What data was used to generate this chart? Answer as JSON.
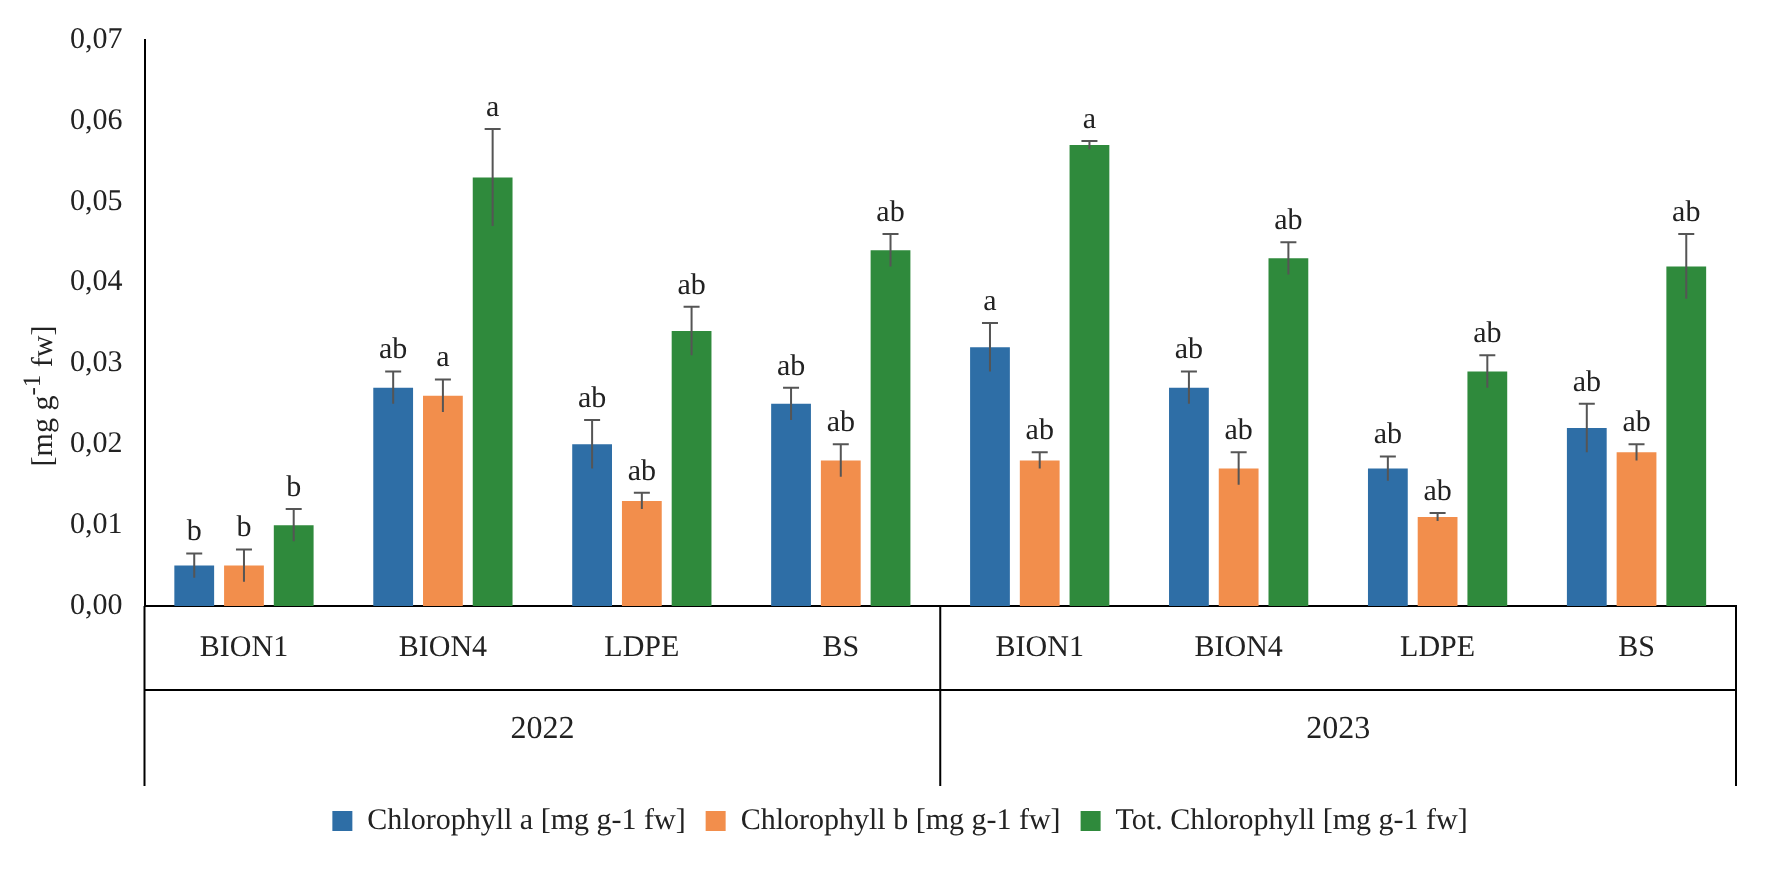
{
  "chart_data": {
    "type": "bar",
    "ylabel": "[mg g$^{-1}$ fw]",
    "categories": [
      "BION1",
      "BION4",
      "LDPE",
      "BS",
      "BION1",
      "BION4",
      "LDPE",
      "BS"
    ],
    "series": [
      {
        "name": "Chlorophyll a [mg g-1 fw]",
        "color": "#2e6ea6",
        "values": [
          0.005,
          0.027,
          0.02,
          0.025,
          0.032,
          0.027,
          0.017,
          0.022
        ],
        "errors": [
          0.0015,
          0.002,
          0.003,
          0.002,
          0.003,
          0.002,
          0.0015,
          0.003
        ],
        "value_labels": [
          "b",
          "ab",
          "ab",
          "ab",
          "a",
          "ab",
          "ab",
          "ab"
        ]
      },
      {
        "name": "Chlorophyll b [mg g-1 fw]",
        "color": "#f28e4c",
        "values": [
          0.005,
          0.026,
          0.013,
          0.018,
          0.018,
          0.017,
          0.011,
          0.019
        ],
        "errors": [
          0.002,
          0.002,
          0.001,
          0.002,
          0.001,
          0.002,
          0.0005,
          0.001
        ],
        "value_labels": [
          "b",
          "a",
          "ab",
          "ab",
          "ab",
          "ab",
          "ab",
          "ab"
        ]
      },
      {
        "name": "Tot. Chlorophyll [mg g-1 fw]",
        "color": "#2f8a3c",
        "values": [
          0.01,
          0.053,
          0.034,
          0.044,
          0.057,
          0.043,
          0.029,
          0.042
        ],
        "errors": [
          0.002,
          0.006,
          0.003,
          0.002,
          0.0005,
          0.002,
          0.002,
          0.004
        ],
        "value_labels": [
          "b",
          "a",
          "ab",
          "ab",
          "a",
          "ab",
          "ab",
          "ab"
        ]
      }
    ],
    "ylim": [
      0,
      0.07
    ],
    "yticks": [
      {
        "value": 0,
        "label": "0,00"
      },
      {
        "value": 0.01,
        "label": "0,01"
      },
      {
        "value": 0.02,
        "label": "0,02"
      },
      {
        "value": 0.03,
        "label": "0,03"
      },
      {
        "value": 0.04,
        "label": "0,04"
      },
      {
        "value": 0.05,
        "label": "0,05"
      },
      {
        "value": 0.06,
        "label": "0,06"
      },
      {
        "value": 0.07,
        "label": "0,07"
      }
    ],
    "annotations": [
      "2022",
      "2023"
    ],
    "grid": false,
    "legend": "bottom"
  }
}
